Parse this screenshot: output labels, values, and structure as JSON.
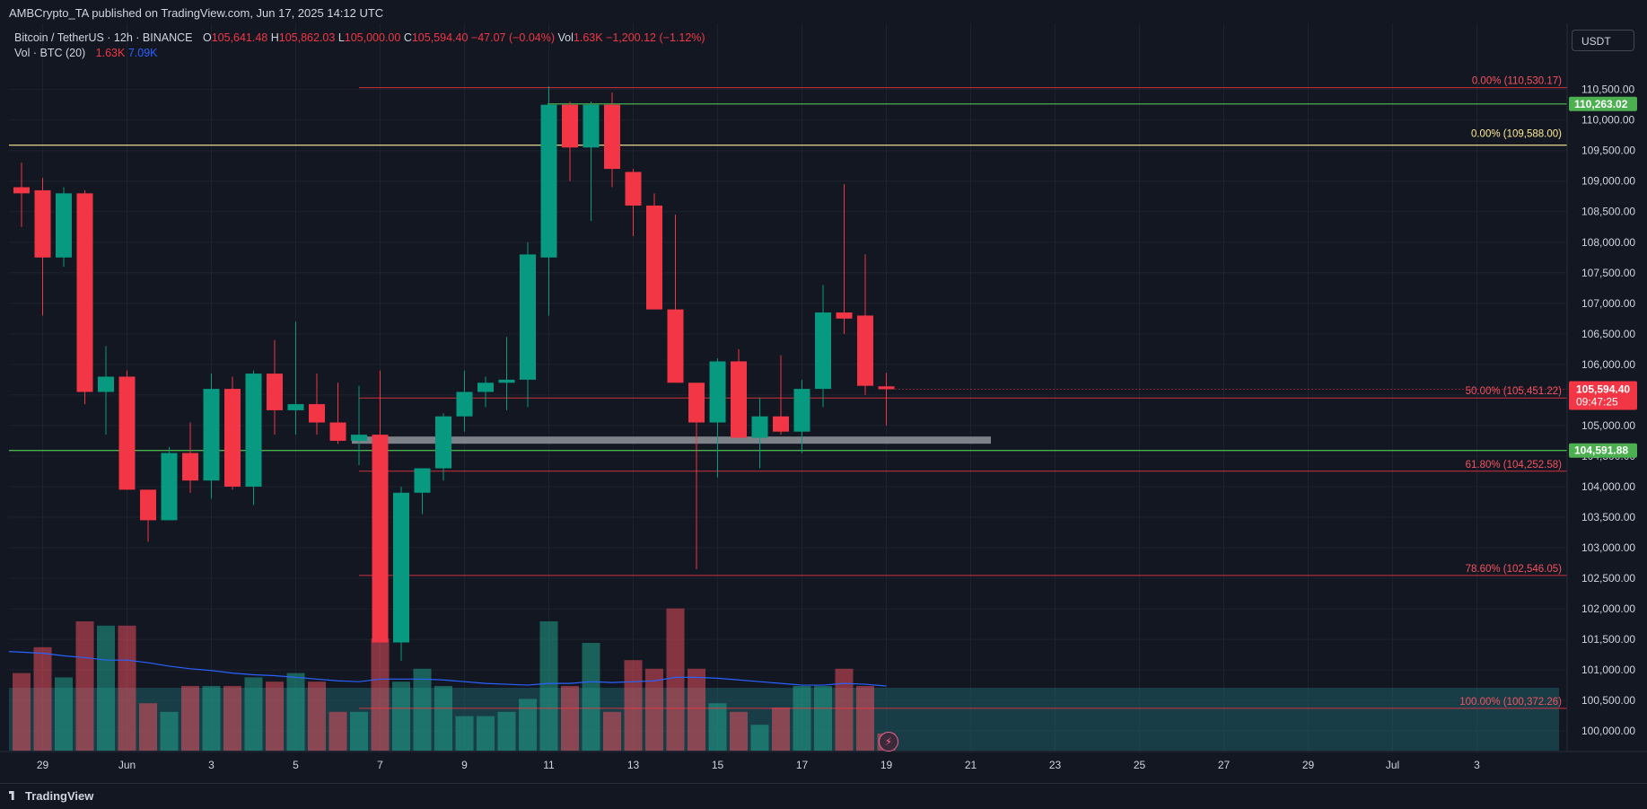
{
  "header": {
    "published": "AMBCrypto_TA published on TradingView.com, Jun 17, 2025 14:12 UTC"
  },
  "legend": {
    "symbol": "Bitcoin / TetherUS · 12h · BINANCE",
    "o_label": "O",
    "o": "105,641.48",
    "h_label": "H",
    "h": "105,862.03",
    "l_label": "L",
    "l": "105,000.00",
    "c_label": "C",
    "c": "105,594.40",
    "change": "−47.07 (−0.04%)",
    "vol_label": "Vol",
    "vol": "1.63K",
    "vol_change": "−1,200.12 (−1.12%)",
    "vol_indicator": "Vol · BTC (20)",
    "vol_value": "1.63K",
    "vol_ma": "7.09K"
  },
  "currency": "USDT",
  "branding": "TradingView",
  "colors": {
    "up": "#089981",
    "down": "#f23645",
    "fib": "#f23645",
    "green_line": "#4caf50",
    "yellow_line": "#ffeb99"
  },
  "chart_data": {
    "type": "candlestick",
    "title": "Bitcoin / TetherUS 12h",
    "ylim": [
      99650,
      111200
    ],
    "y_ticks": [
      "100,000.00",
      "100,500.00",
      "101,000.00",
      "101,500.00",
      "102,000.00",
      "102,500.00",
      "103,000.00",
      "103,500.00",
      "104,000.00",
      "104,500.00",
      "105,000.00",
      "105,500.00",
      "106,000.00",
      "106,500.00",
      "107,000.00",
      "107,500.00",
      "108,000.00",
      "108,500.00",
      "109,000.00",
      "109,500.00",
      "110,000.00",
      "110,500.00"
    ],
    "x_ticks": [
      {
        "label": "29",
        "index": 1
      },
      {
        "label": "Jun",
        "index": 5
      },
      {
        "label": "3",
        "index": 9
      },
      {
        "label": "5",
        "index": 13
      },
      {
        "label": "7",
        "index": 17
      },
      {
        "label": "9",
        "index": 21
      },
      {
        "label": "11",
        "index": 25
      },
      {
        "label": "13",
        "index": 29
      },
      {
        "label": "15",
        "index": 33
      },
      {
        "label": "17",
        "index": 37
      },
      {
        "label": "19",
        "index": 41
      },
      {
        "label": "21",
        "index": 45
      },
      {
        "label": "23",
        "index": 49
      },
      {
        "label": "25",
        "index": 53
      },
      {
        "label": "27",
        "index": 57
      },
      {
        "label": "29",
        "index": 61
      },
      {
        "label": "Jul",
        "index": 65
      },
      {
        "label": "3",
        "index": 69
      }
    ],
    "candles": [
      {
        "o": 108900,
        "h": 109300,
        "l": 108250,
        "c": 108800
      },
      {
        "o": 108850,
        "h": 109050,
        "l": 106800,
        "c": 107750
      },
      {
        "o": 107750,
        "h": 108900,
        "l": 107600,
        "c": 108800
      },
      {
        "o": 108800,
        "h": 108850,
        "l": 105350,
        "c": 105550
      },
      {
        "o": 105550,
        "h": 106300,
        "l": 104850,
        "c": 105800
      },
      {
        "o": 105800,
        "h": 105900,
        "l": 103950,
        "c": 103950
      },
      {
        "o": 103950,
        "h": 103950,
        "l": 103100,
        "c": 103450
      },
      {
        "o": 103450,
        "h": 104650,
        "l": 103450,
        "c": 104550
      },
      {
        "o": 104550,
        "h": 105050,
        "l": 103900,
        "c": 104100
      },
      {
        "o": 104100,
        "h": 105850,
        "l": 103800,
        "c": 105600
      },
      {
        "o": 105600,
        "h": 105800,
        "l": 103950,
        "c": 104000
      },
      {
        "o": 104000,
        "h": 105900,
        "l": 103700,
        "c": 105850
      },
      {
        "o": 105850,
        "h": 106400,
        "l": 104850,
        "c": 105250
      },
      {
        "o": 105250,
        "h": 106700,
        "l": 104850,
        "c": 105350
      },
      {
        "o": 105350,
        "h": 105850,
        "l": 104850,
        "c": 105050
      },
      {
        "o": 105050,
        "h": 105700,
        "l": 104700,
        "c": 104750
      },
      {
        "o": 104750,
        "h": 105650,
        "l": 104350,
        "c": 104850
      },
      {
        "o": 104850,
        "h": 105900,
        "l": 101500,
        "c": 101450
      },
      {
        "o": 101450,
        "h": 104000,
        "l": 101150,
        "c": 103900
      },
      {
        "o": 103900,
        "h": 104300,
        "l": 103550,
        "c": 104300
      },
      {
        "o": 104300,
        "h": 105200,
        "l": 104100,
        "c": 105150
      },
      {
        "o": 105150,
        "h": 105900,
        "l": 104900,
        "c": 105550
      },
      {
        "o": 105550,
        "h": 105800,
        "l": 105300,
        "c": 105700
      },
      {
        "o": 105700,
        "h": 106450,
        "l": 105250,
        "c": 105750
      },
      {
        "o": 105750,
        "h": 108000,
        "l": 105300,
        "c": 107800
      },
      {
        "o": 107750,
        "h": 110550,
        "l": 106800,
        "c": 110250
      },
      {
        "o": 110250,
        "h": 110300,
        "l": 109000,
        "c": 109550
      },
      {
        "o": 109550,
        "h": 110300,
        "l": 108350,
        "c": 110250
      },
      {
        "o": 110250,
        "h": 110450,
        "l": 108900,
        "c": 109200
      },
      {
        "o": 109150,
        "h": 109200,
        "l": 108100,
        "c": 108600
      },
      {
        "o": 108600,
        "h": 108800,
        "l": 106900,
        "c": 106900
      },
      {
        "o": 106900,
        "h": 108450,
        "l": 105700,
        "c": 105700
      },
      {
        "o": 105700,
        "h": 105700,
        "l": 102650,
        "c": 105050
      },
      {
        "o": 105050,
        "h": 106100,
        "l": 104150,
        "c": 106050
      },
      {
        "o": 106050,
        "h": 106250,
        "l": 104800,
        "c": 104800
      },
      {
        "o": 104800,
        "h": 105450,
        "l": 104300,
        "c": 105150
      },
      {
        "o": 105150,
        "h": 106150,
        "l": 104850,
        "c": 104900
      },
      {
        "o": 104900,
        "h": 105750,
        "l": 104550,
        "c": 105600
      },
      {
        "o": 105600,
        "h": 107300,
        "l": 105300,
        "c": 106850
      },
      {
        "o": 106850,
        "h": 108950,
        "l": 106500,
        "c": 106750
      },
      {
        "o": 106800,
        "h": 107800,
        "l": 105500,
        "c": 105650
      },
      {
        "o": 105641,
        "h": 105862,
        "l": 105000,
        "c": 105594
      }
    ],
    "volumes": [
      0.9,
      1.2,
      0.85,
      1.5,
      1.45,
      1.45,
      0.55,
      0.45,
      0.75,
      0.75,
      0.75,
      0.85,
      0.8,
      0.9,
      0.8,
      0.45,
      0.45,
      1.3,
      0.8,
      0.95,
      0.75,
      0.4,
      0.4,
      0.45,
      0.6,
      1.5,
      0.75,
      1.25,
      0.45,
      1.05,
      0.95,
      1.65,
      0.95,
      0.55,
      0.45,
      0.3,
      0.5,
      0.75,
      0.75,
      0.95,
      0.75,
      0.2
    ],
    "vol_ma": [
      1.15,
      1.13,
      1.1,
      1.08,
      1.05,
      1.05,
      1.02,
      0.98,
      0.95,
      0.93,
      0.9,
      0.88,
      0.87,
      0.85,
      0.83,
      0.81,
      0.8,
      0.83,
      0.83,
      0.83,
      0.82,
      0.8,
      0.78,
      0.77,
      0.76,
      0.78,
      0.78,
      0.8,
      0.79,
      0.8,
      0.81,
      0.85,
      0.85,
      0.84,
      0.82,
      0.8,
      0.78,
      0.76,
      0.76,
      0.78,
      0.77,
      0.75
    ],
    "fib_levels": [
      {
        "label": "0.00% (110,530.17)",
        "price": 110530.17,
        "color": "#f23645"
      },
      {
        "label": "50.00% (105,451.22)",
        "price": 105451.22,
        "color": "#f23645"
      },
      {
        "label": "61.80% (104,252.58)",
        "price": 104252.58,
        "color": "#f23645"
      },
      {
        "label": "78.60% (102,546.05)",
        "price": 102546.05,
        "color": "#f23645"
      },
      {
        "label": "100.00% (100,372.26)",
        "price": 100372.26,
        "color": "#f23645"
      }
    ],
    "yellow_level": {
      "label": "0.00% (109,588.00)",
      "price": 109588.0
    },
    "green_levels": [
      {
        "label": "110,263.02",
        "price": 110263.02
      },
      {
        "label": "104,591.88",
        "price": 104591.88
      }
    ],
    "support_band": {
      "price_top": 104820,
      "price_bottom": 104680
    },
    "current_price": {
      "label": "105,594.40",
      "countdown": "09:47:25",
      "price": 105594.4
    }
  }
}
